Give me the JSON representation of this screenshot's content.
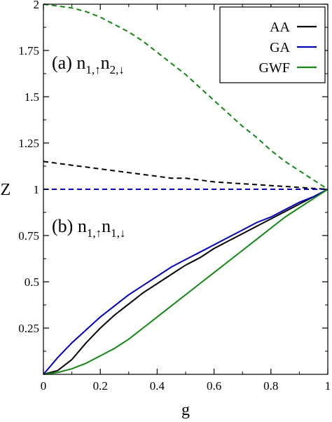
{
  "chart_data": {
    "type": "line",
    "xlabel": "g",
    "ylabel": "Z",
    "xlim": [
      0,
      1
    ],
    "ylim": [
      0,
      2
    ],
    "grid": false,
    "legend_position": "top-right",
    "x_ticks": [
      "0",
      "0.2",
      "0.4",
      "0.6",
      "0.8",
      "1"
    ],
    "y_ticks": [
      "0.25",
      "0.5",
      "0.75",
      "1",
      "1.25",
      "1.5",
      "1.75",
      "2"
    ],
    "annotations": [
      {
        "main": "(a) n",
        "sub1": "1,↑",
        "mid": "n",
        "sub2": "2,↓"
      },
      {
        "main": "(b) n",
        "sub1": "1,↑",
        "mid": "n",
        "sub2": "1,↓"
      }
    ],
    "x": [
      0,
      0.05,
      0.1,
      0.15,
      0.2,
      0.25,
      0.3,
      0.35,
      0.4,
      0.45,
      0.5,
      0.55,
      0.6,
      0.65,
      0.7,
      0.75,
      0.8,
      0.85,
      0.9,
      0.95,
      1
    ],
    "series": [
      {
        "name": "AA",
        "color": "#000000",
        "style": "dashed",
        "panel": "a",
        "values": [
          1.15,
          1.14,
          1.13,
          1.12,
          1.11,
          1.1,
          1.09,
          1.08,
          1.07,
          1.06,
          1.06,
          1.05,
          1.04,
          1.035,
          1.03,
          1.025,
          1.02,
          1.015,
          1.01,
          1.005,
          1.0
        ]
      },
      {
        "name": "GA",
        "color": "#0000bb",
        "style": "dashed",
        "panel": "a",
        "values": [
          1,
          1,
          1,
          1,
          1,
          1,
          1,
          1,
          1,
          1,
          1,
          1,
          1,
          1,
          1,
          1,
          1,
          1,
          1,
          1,
          1
        ]
      },
      {
        "name": "GWF",
        "color": "#118811",
        "style": "dashed",
        "panel": "a",
        "values": [
          2.0,
          1.99,
          1.98,
          1.96,
          1.93,
          1.89,
          1.85,
          1.8,
          1.74,
          1.68,
          1.62,
          1.55,
          1.48,
          1.41,
          1.34,
          1.28,
          1.21,
          1.15,
          1.1,
          1.05,
          1.0
        ]
      },
      {
        "name": "AA",
        "color": "#000000",
        "style": "solid",
        "panel": "b",
        "values": [
          0.0,
          0.02,
          0.08,
          0.17,
          0.25,
          0.32,
          0.38,
          0.44,
          0.49,
          0.54,
          0.59,
          0.63,
          0.68,
          0.72,
          0.76,
          0.8,
          0.84,
          0.88,
          0.92,
          0.96,
          1.0
        ]
      },
      {
        "name": "GA",
        "color": "#0000bb",
        "style": "solid",
        "panel": "b",
        "values": [
          0.0,
          0.09,
          0.17,
          0.24,
          0.31,
          0.37,
          0.43,
          0.48,
          0.53,
          0.58,
          0.62,
          0.66,
          0.7,
          0.74,
          0.78,
          0.82,
          0.85,
          0.89,
          0.93,
          0.96,
          1.0
        ]
      },
      {
        "name": "GWF",
        "color": "#118811",
        "style": "solid",
        "panel": "b",
        "values": [
          0.0,
          0.01,
          0.03,
          0.06,
          0.1,
          0.14,
          0.19,
          0.25,
          0.31,
          0.37,
          0.43,
          0.49,
          0.55,
          0.61,
          0.67,
          0.73,
          0.79,
          0.85,
          0.9,
          0.95,
          1.0
        ]
      }
    ],
    "legend": [
      {
        "name": "AA",
        "color": "#000000"
      },
      {
        "name": "GA",
        "color": "#0000bb"
      },
      {
        "name": "GWF",
        "color": "#118811"
      }
    ]
  }
}
